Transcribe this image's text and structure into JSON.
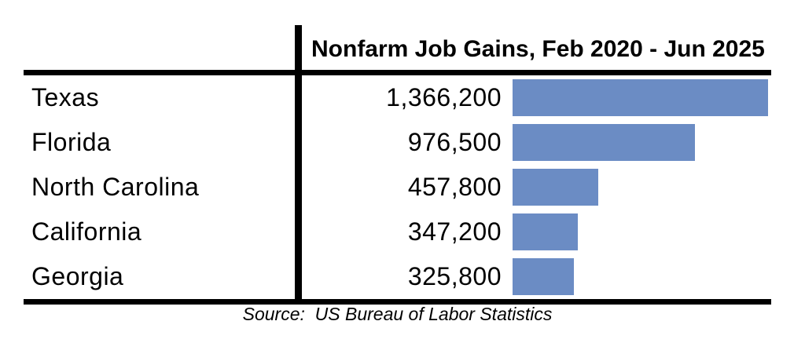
{
  "chart_data": {
    "type": "bar",
    "orientation": "horizontal",
    "title": "Nonfarm Job Gains, Feb 2020 - Jun 2025",
    "source_note": "Source:  US Bureau of Labor Statistics",
    "categories": [
      "Texas",
      "Florida",
      "North Carolina",
      "California",
      "Georgia"
    ],
    "values": [
      1366200,
      976500,
      457800,
      347200,
      325800
    ],
    "value_labels": [
      "1,366,200",
      "976,500",
      "457,800",
      "347,200",
      "325,800"
    ],
    "xlim": [
      0,
      1366200
    ],
    "legend": "none",
    "grid": "off",
    "bar_color": "#6B8CC4",
    "axis_color": "#000000",
    "text_color": "#000000",
    "background_color": "#FFFFFF"
  }
}
